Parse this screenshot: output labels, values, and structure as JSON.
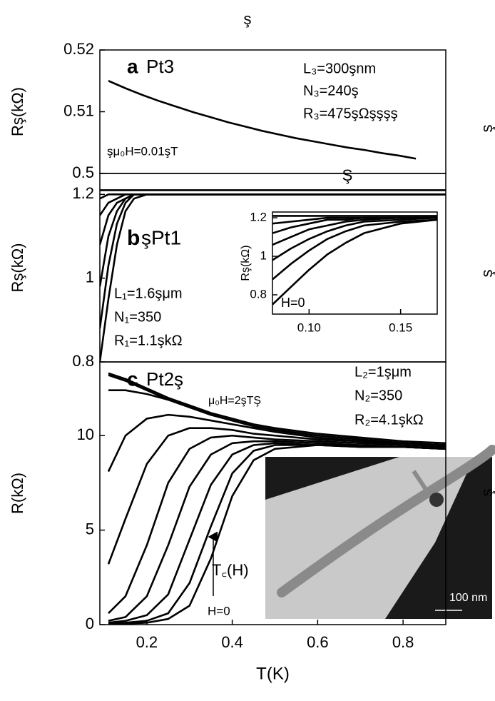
{
  "stray_text": [
    "ş",
    "Ş",
    "ş",
    "ş",
    "ş"
  ],
  "chart_data": [
    {
      "type": "line",
      "ylabel": "Rş(kΩ)",
      "ylim": [
        0.5,
        0.52
      ],
      "yticks": [
        0.5,
        0.51,
        0.52
      ],
      "xlim": [
        0.09,
        0.9
      ],
      "x": [
        0.11,
        0.15,
        0.19,
        0.23,
        0.27,
        0.31,
        0.35,
        0.39,
        0.43,
        0.47,
        0.51,
        0.55,
        0.59,
        0.63,
        0.67,
        0.71,
        0.75,
        0.79,
        0.83
      ],
      "series": [
        {
          "color": "#000000",
          "values": [
            0.515,
            0.5138,
            0.5127,
            0.5117,
            0.5108,
            0.5099,
            0.5091,
            0.5083,
            0.5076,
            0.5069,
            0.5063,
            0.5057,
            0.5052,
            0.5047,
            0.5042,
            0.5038,
            0.5033,
            0.5029,
            0.5024
          ]
        }
      ],
      "annotations": [
        "a",
        "Pt3",
        "L₃=300şnm",
        "N₃=240ş",
        "R₃=475şΩşşşş",
        "şμ₀H=0.01şT"
      ]
    },
    {
      "type": "line",
      "ylabel": "Rş(kΩ)",
      "ylim": [
        0.8,
        1.25
      ],
      "yticks": [
        0.8,
        1.0,
        1.2
      ],
      "xlim": [
        0.09,
        0.9
      ],
      "x": [
        0.09,
        0.11,
        0.13,
        0.15,
        0.17,
        0.2,
        0.3,
        0.5,
        0.9
      ],
      "series": [
        {
          "color": "#000000",
          "values": [
            1.21,
            1.21,
            1.21,
            1.21,
            1.21,
            1.21,
            1.21,
            1.21,
            1.21
          ]
        },
        {
          "color": "#000000",
          "values": [
            1.19,
            1.2,
            1.2,
            1.2,
            1.2,
            1.2,
            1.2,
            1.2,
            1.2
          ]
        },
        {
          "color": "#000000",
          "values": [
            1.15,
            1.18,
            1.19,
            1.2,
            1.2,
            1.2,
            1.2,
            1.2,
            1.2
          ]
        },
        {
          "color": "#000000",
          "values": [
            1.08,
            1.15,
            1.18,
            1.19,
            1.2,
            1.2,
            1.2,
            1.2,
            1.2
          ]
        },
        {
          "color": "#000000",
          "values": [
            0.98,
            1.1,
            1.16,
            1.19,
            1.2,
            1.2,
            1.2,
            1.2,
            1.2
          ]
        },
        {
          "color": "#000000",
          "values": [
            0.88,
            1.03,
            1.13,
            1.18,
            1.2,
            1.2,
            1.2,
            1.2,
            1.2
          ]
        },
        {
          "color": "#000000",
          "values": [
            0.8,
            0.95,
            1.08,
            1.16,
            1.19,
            1.2,
            1.2,
            1.2,
            1.2
          ]
        }
      ],
      "annotations": [
        "b",
        "şPt1",
        "L₁=1.6şμm",
        "N₁=350",
        "R₁=1.1şkΩ"
      ]
    },
    {
      "type": "line",
      "xlabel": "T(K)",
      "ylabel": "R(kΩ)",
      "ylim": [
        0,
        13.9
      ],
      "yticks": [
        0,
        5,
        10
      ],
      "xlim": [
        0.09,
        0.9
      ],
      "xticks": [
        0.2,
        0.4,
        0.6,
        0.8
      ],
      "x": [
        0.11,
        0.15,
        0.2,
        0.25,
        0.3,
        0.35,
        0.4,
        0.45,
        0.5,
        0.6,
        0.7,
        0.8,
        0.9
      ],
      "series": [
        {
          "color": "#000000",
          "values": [
            13.3,
            13.0,
            12.5,
            12.0,
            11.6,
            11.2,
            10.9,
            10.6,
            10.4,
            10.1,
            9.9,
            9.7,
            9.6
          ]
        },
        {
          "color": "#000000",
          "values": [
            13.2,
            12.9,
            12.4,
            11.9,
            11.5,
            11.1,
            10.8,
            10.5,
            10.3,
            10.0,
            9.8,
            9.6,
            9.5
          ]
        },
        {
          "color": "#000000",
          "values": [
            12.4,
            12.4,
            12.2,
            11.9,
            11.5,
            11.1,
            10.8,
            10.5,
            10.3,
            10.0,
            9.8,
            9.6,
            9.5
          ]
        },
        {
          "color": "#000000",
          "values": [
            8.1,
            10.0,
            10.9,
            11.1,
            11.0,
            10.8,
            10.6,
            10.4,
            10.2,
            9.9,
            9.7,
            9.6,
            9.5
          ]
        },
        {
          "color": "#000000",
          "values": [
            3.2,
            5.6,
            8.5,
            10.0,
            10.4,
            10.4,
            10.3,
            10.1,
            10.0,
            9.8,
            9.7,
            9.5,
            9.4
          ]
        },
        {
          "color": "#000000",
          "values": [
            0.6,
            1.5,
            4.2,
            7.5,
            9.3,
            9.9,
            10.0,
            9.9,
            9.8,
            9.7,
            9.6,
            9.5,
            9.4
          ]
        },
        {
          "color": "#000000",
          "values": [
            0.2,
            0.4,
            1.5,
            4.2,
            7.3,
            9.0,
            9.6,
            9.7,
            9.7,
            9.6,
            9.5,
            9.4,
            9.3
          ]
        },
        {
          "color": "#000000",
          "values": [
            0.1,
            0.2,
            0.5,
            1.6,
            4.5,
            7.4,
            9.0,
            9.5,
            9.6,
            9.5,
            9.5,
            9.4,
            9.3
          ]
        },
        {
          "color": "#000000",
          "values": [
            0.05,
            0.1,
            0.2,
            0.6,
            2.2,
            5.2,
            8.0,
            9.2,
            9.5,
            9.5,
            9.4,
            9.4,
            9.3
          ]
        },
        {
          "color": "#000000",
          "values": [
            0.02,
            0.05,
            0.1,
            0.3,
            1.0,
            3.5,
            6.8,
            8.7,
            9.3,
            9.5,
            9.4,
            9.4,
            9.3
          ]
        }
      ],
      "annotations": [
        "c",
        "Pt2ş",
        "μ₀H=2şTŞ",
        "L₂=1şμm",
        "N₂=350",
        "R₂=4.1şkΩ",
        "T꜀(H)",
        "H=0",
        "100 nm"
      ]
    },
    {
      "type": "line",
      "ylabel": "Rş(kΩ)",
      "ylim": [
        0.7,
        1.23
      ],
      "yticks": [
        0.8,
        1.0,
        1.2
      ],
      "xlim": [
        0.08,
        0.17
      ],
      "xticks": [
        {
          "value": 0.1,
          "label": "0.10"
        },
        0.15
      ],
      "x": [
        0.08,
        0.09,
        0.1,
        0.11,
        0.12,
        0.13,
        0.15,
        0.17
      ],
      "series": [
        {
          "color": "#000000",
          "values": [
            1.21,
            1.21,
            1.21,
            1.21,
            1.21,
            1.21,
            1.21,
            1.21
          ]
        },
        {
          "color": "#000000",
          "values": [
            1.17,
            1.18,
            1.19,
            1.2,
            1.2,
            1.2,
            1.2,
            1.2
          ]
        },
        {
          "color": "#000000",
          "values": [
            1.12,
            1.15,
            1.17,
            1.19,
            1.19,
            1.2,
            1.2,
            1.2
          ]
        },
        {
          "color": "#000000",
          "values": [
            1.06,
            1.1,
            1.14,
            1.16,
            1.18,
            1.19,
            1.2,
            1.2
          ]
        },
        {
          "color": "#000000",
          "values": [
            0.98,
            1.04,
            1.09,
            1.13,
            1.16,
            1.18,
            1.19,
            1.2
          ]
        },
        {
          "color": "#000000",
          "values": [
            0.88,
            0.96,
            1.03,
            1.09,
            1.13,
            1.16,
            1.18,
            1.19
          ]
        },
        {
          "color": "#000000",
          "values": [
            0.75,
            0.84,
            0.93,
            1.01,
            1.07,
            1.12,
            1.17,
            1.19
          ]
        }
      ],
      "annotations": [
        "H=0"
      ]
    }
  ]
}
